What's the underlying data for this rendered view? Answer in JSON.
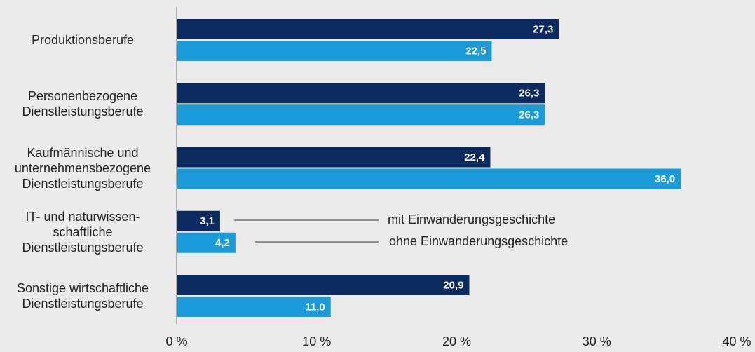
{
  "chart_data": {
    "type": "hbar",
    "categories": [
      "Produktionsberufe",
      "Personenbezogene\nDienstleistungsberufe",
      "Kaufmännische und\nunternehmensbezogene\nDienstleistungsberufe",
      "IT- und naturwissen-\nschaftliche\nDienstleistungsberufe",
      "Sonstige wirtschaftliche\nDienstleistungsberufe"
    ],
    "series": [
      {
        "name": "mit Einwanderungsgeschichte",
        "color": "#0b2a5f",
        "values": [
          27.3,
          26.3,
          22.4,
          3.1,
          20.9
        ],
        "value_labels": [
          "27,3",
          "26,3",
          "22,4",
          "3,1",
          "20,9"
        ]
      },
      {
        "name": "ohne Einwanderungsgeschichte",
        "color": "#1a9ad7",
        "values": [
          22.5,
          26.3,
          36.0,
          4.2,
          11.0
        ],
        "value_labels": [
          "22,5",
          "26,3",
          "36,0",
          "4,2",
          "11,0"
        ]
      }
    ],
    "xlim": [
      0,
      40
    ],
    "xticks": [
      {
        "value": 0,
        "label": "0 %"
      },
      {
        "value": 10,
        "label": "10 %"
      },
      {
        "value": 20,
        "label": "20 %"
      },
      {
        "value": 30,
        "label": "30 %"
      },
      {
        "value": 40,
        "label": "40 %"
      }
    ]
  }
}
